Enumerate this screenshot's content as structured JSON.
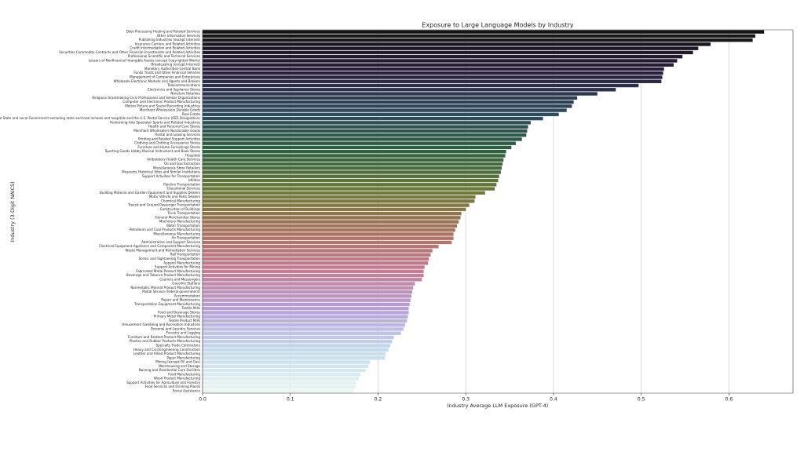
{
  "chart_data": {
    "type": "barh",
    "title": "Exposure to Large Language Models by Industry",
    "xlabel": "Industry Average LLM Exposure (GPT-4)",
    "ylabel": "Industry (3-Digit NAICS)",
    "categories": [
      "Data Processing Hosting and Related Services",
      "Other Information Services",
      "Publishing Industries (except Internet)",
      "Insurance Carriers and Related Activities",
      "Credit Intermediation and Related Activities",
      "Securities Commodity Contracts and Other Financial Investments and Related Activities",
      "Professional Scientific and Technical Services",
      "Lessors of Nonfinancial Intangible Assets (except Copyrighted Works)",
      "Broadcasting (except Internet)",
      "Monetary Authorities-Central Bank",
      "Funds Trusts and Other Financial Vehicles",
      "Management of Companies and Enterprises",
      "Wholesale Electronic Markets and Agents and Brokers",
      "Telecommunications",
      "Electronics and Appliance Stores",
      "Nonstore Retailers",
      "Religious Grantmaking Civic Professional and Similar Organizations",
      "Computer and Electronic Product Manufacturing",
      "Motion Picture and Sound Recording Industries",
      "Merchant Wholesalers Durable Goods",
      "Real Estate",
      "Federal State and Local Government excluding state and local schools and hospitals and the U.S. Postal Service (OES Designation)",
      "Performing Arts Spectator Sports and Related Industries",
      "Health and Personal Care Stores",
      "Merchant Wholesalers Nondurable Goods",
      "Rental and Leasing Services",
      "Printing and Related Support Activities",
      "Clothing and Clothing Accessories Stores",
      "Furniture and Home Furnishings Stores",
      "Sporting Goods Hobby Musical Instrument and Book Stores",
      "Hospitals",
      "Ambulatory Health Care Services",
      "Oil and Gas Extraction",
      "Miscellaneous Store Retailers",
      "Museums Historical Sites and Similar Institutions",
      "Support Activities for Transportation",
      "Utilities",
      "Pipeline Transportation",
      "Educational Services",
      "Building Material and Garden Equipment and Supplies Dealers",
      "Motor Vehicle and Parts Dealers",
      "Chemical Manufacturing",
      "Transit and Ground Passenger Transportation",
      "Construction of Buildings",
      "Truck Transportation",
      "General Merchandise Stores",
      "Machinery Manufacturing",
      "Water Transportation",
      "Petroleum and Coal Products Manufacturing",
      "Miscellaneous Manufacturing",
      "Air Transportation",
      "Administrative and Support Services",
      "Electrical Equipment Appliance and Component Manufacturing",
      "Waste Management and Remediation Services",
      "Rail Transportation",
      "Scenic and Sightseeing Transportation",
      "Apparel Manufacturing",
      "Support Activities for Mining",
      "Fabricated Metal Product Manufacturing",
      "Beverage and Tobacco Product Manufacturing",
      "Couriers and Messengers",
      "Gasoline Stations",
      "Nonmetallic Mineral Product Manufacturing",
      "Postal Service (federal government)",
      "Accommodation",
      "Repair and Maintenance",
      "Transportation Equipment Manufacturing",
      "Textile Mills",
      "Food and Beverage Stores",
      "Primary Metal Manufacturing",
      "Textile Product Mills",
      "Amusement Gambling and Recreation Industries",
      "Personal and Laundry Services",
      "Forestry and Logging",
      "Furniture and Related Product Manufacturing",
      "Plastics and Rubber Products Manufacturing",
      "Specialty Trade Contractors",
      "Heavy and Civil Engineering Construction",
      "Leather and Allied Product Manufacturing",
      "Paper Manufacturing",
      "Mining (except Oil and Gas)",
      "Warehousing and Storage",
      "Nursing and Residential Care Facilities",
      "Food Manufacturing",
      "Wood Product Manufacturing",
      "Support Activities for Agriculture and Forestry",
      "Food Services and Drinking Places",
      "Social Assistance"
    ],
    "values": [
      0.64,
      0.63,
      0.627,
      0.579,
      0.565,
      0.559,
      0.547,
      0.541,
      0.537,
      0.526,
      0.525,
      0.524,
      0.523,
      0.497,
      0.471,
      0.45,
      0.427,
      0.423,
      0.421,
      0.415,
      0.406,
      0.388,
      0.374,
      0.371,
      0.37,
      0.369,
      0.364,
      0.357,
      0.352,
      0.346,
      0.345,
      0.343,
      0.342,
      0.341,
      0.34,
      0.338,
      0.337,
      0.335,
      0.333,
      0.322,
      0.311,
      0.31,
      0.304,
      0.3,
      0.295,
      0.294,
      0.292,
      0.29,
      0.288,
      0.286,
      0.286,
      0.284,
      0.269,
      0.262,
      0.26,
      0.258,
      0.257,
      0.253,
      0.252,
      0.252,
      0.25,
      0.242,
      0.24,
      0.239,
      0.238,
      0.237,
      0.236,
      0.235,
      0.235,
      0.234,
      0.233,
      0.231,
      0.229,
      0.226,
      0.218,
      0.216,
      0.214,
      0.212,
      0.209,
      0.208,
      0.191,
      0.189,
      0.186,
      0.18,
      0.178,
      0.175,
      0.174,
      0.172
    ],
    "palette": [
      "#141414",
      "#2b1f3d",
      "#2e4a5e",
      "#2f6140",
      "#6e7a38",
      "#a9735e",
      "#c47d97",
      "#b6a4d8",
      "#c5dbee",
      "#eaf5f1"
    ],
    "xlim": [
      0,
      0.673
    ],
    "xticks": [
      {
        "value": 0,
        "label": "0.0"
      },
      0.1,
      0.2,
      0.3,
      0.4,
      0.5,
      0.6
    ],
    "grid": true
  }
}
